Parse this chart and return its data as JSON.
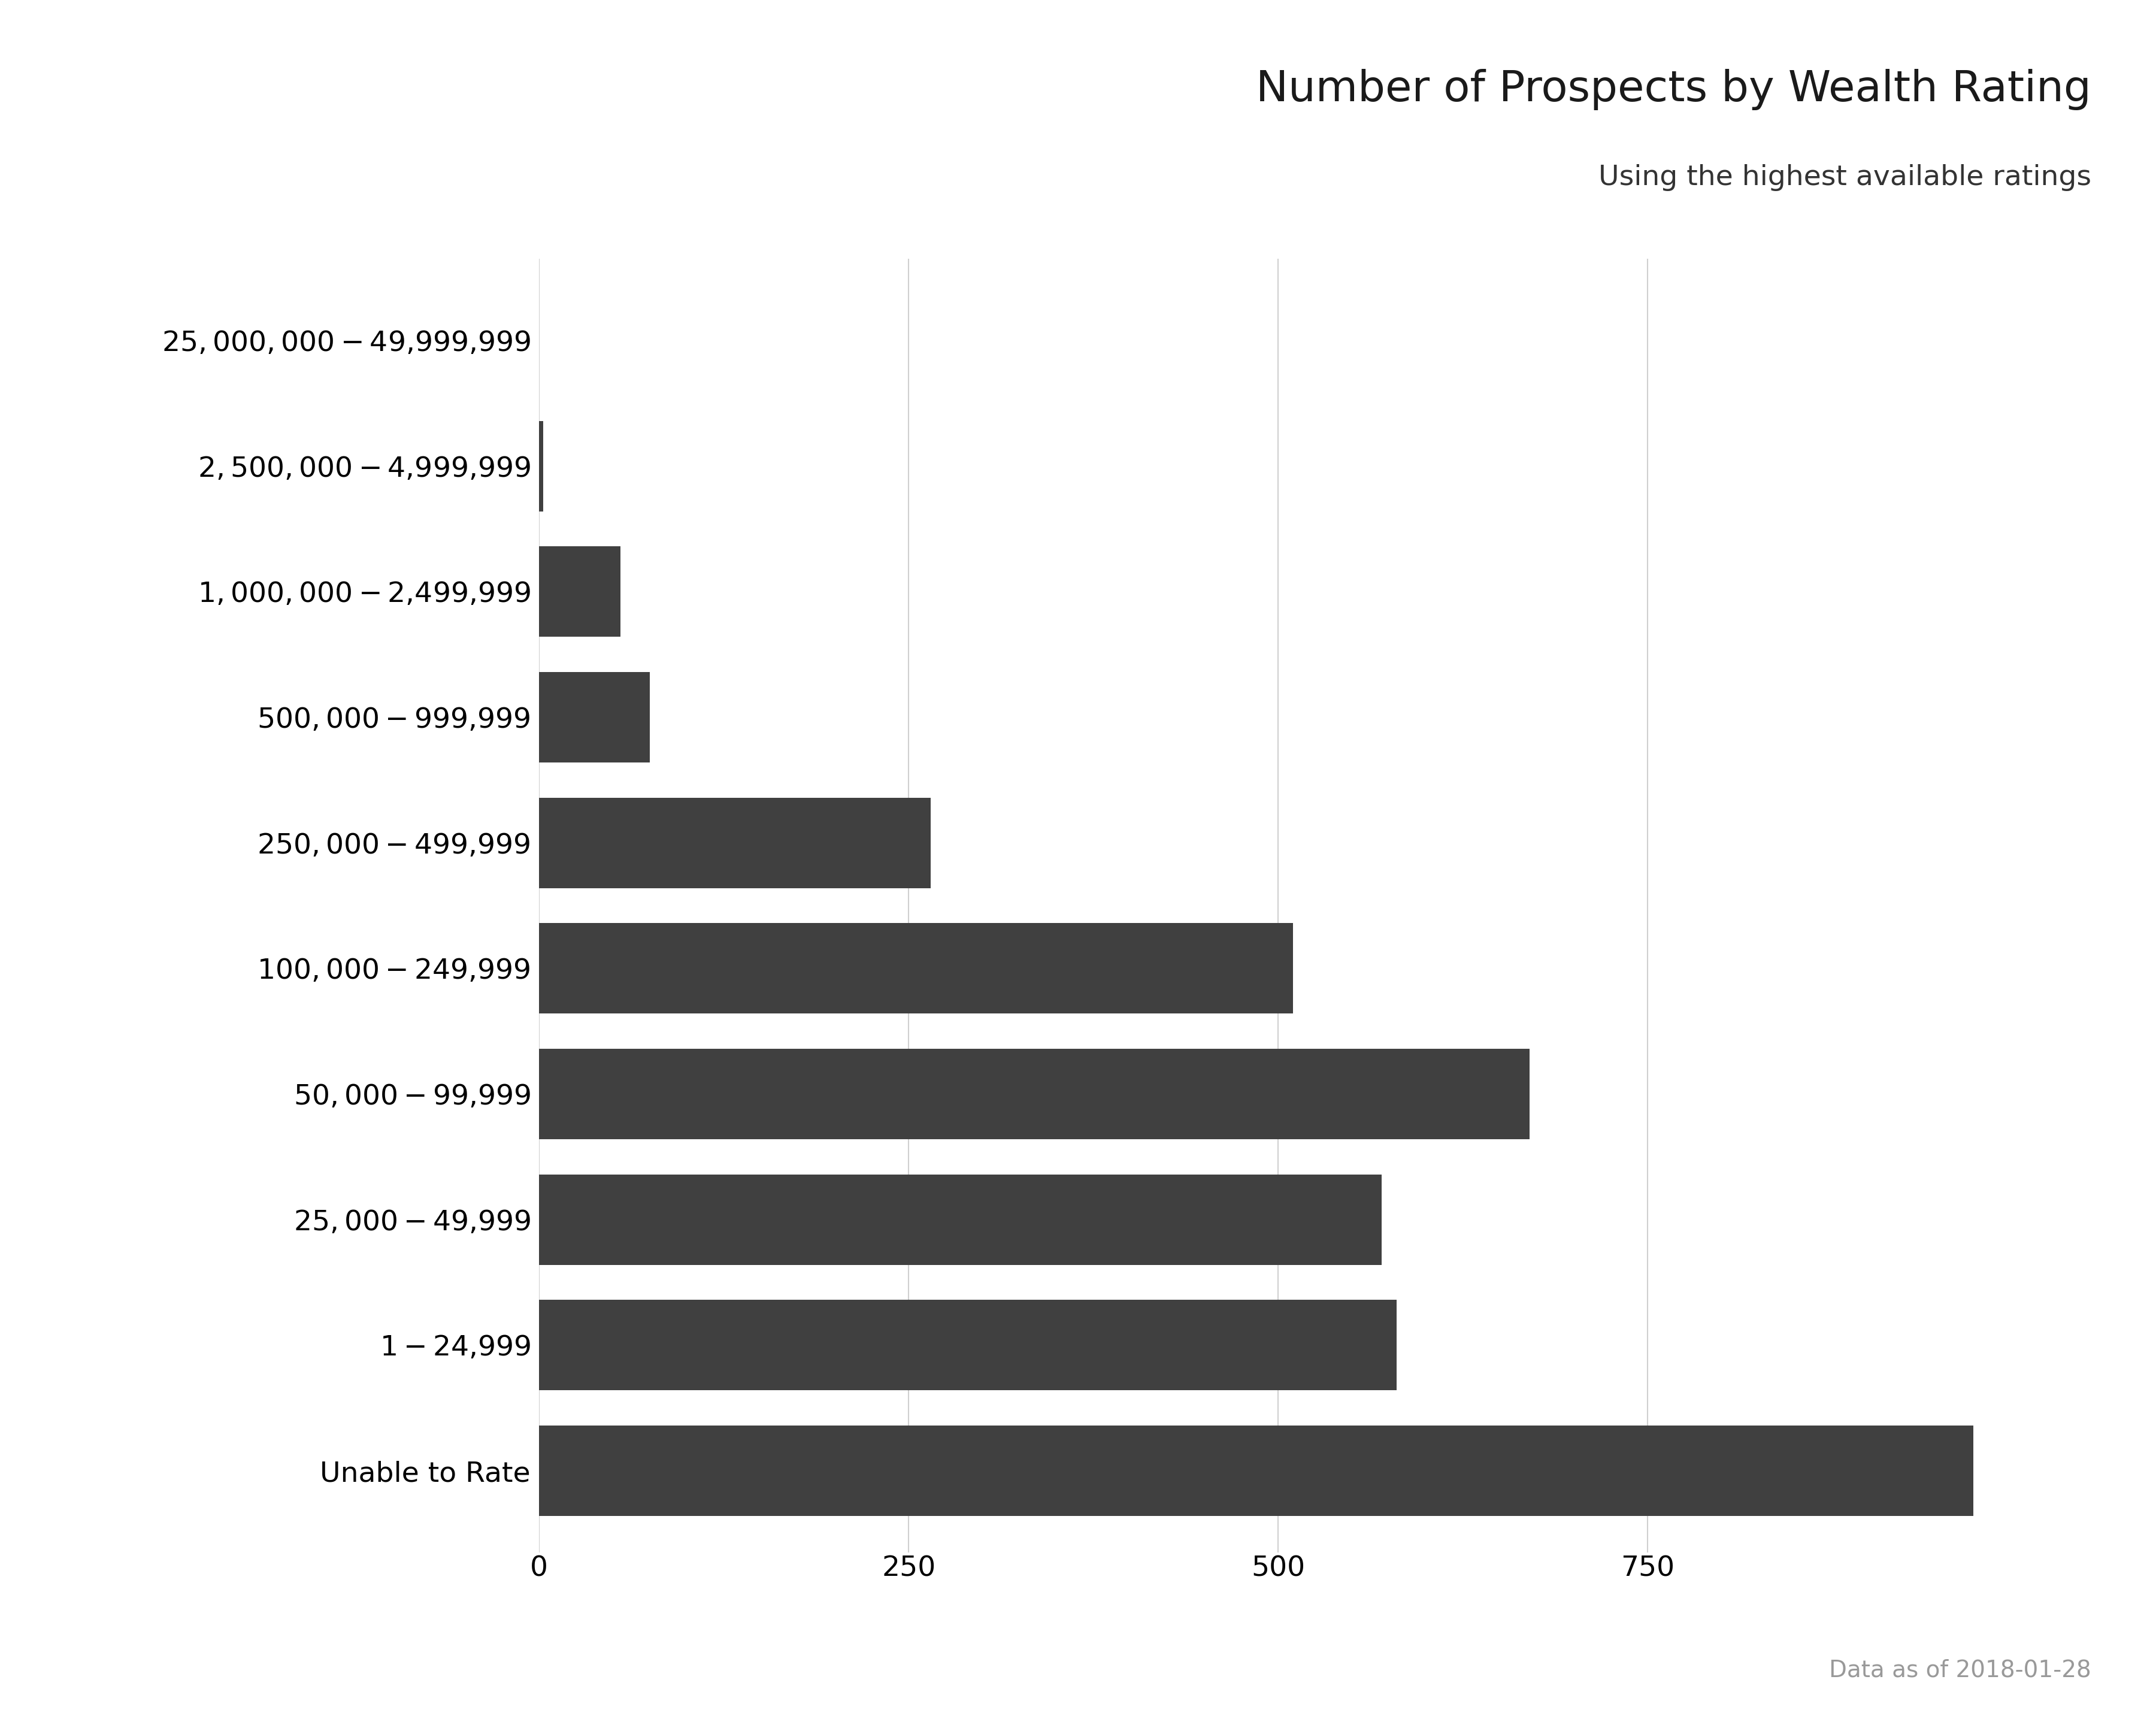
{
  "title": "Number of Prospects by Wealth Rating",
  "subtitle": "Using the highest available ratings",
  "footnote": "Data as of 2018-01-28",
  "categories": [
    "Unable to Rate",
    "$1-$24,999",
    "$25,000-$49,999",
    "$50,000-$99,999",
    "$100,000-$249,999",
    "$250,000-$499,999",
    "$500,000-$999,999",
    "$1,000,000-$2,499,999",
    "$2,500,000-$4,999,999",
    "$25,000,000-$49,999,999"
  ],
  "values": [
    970,
    580,
    570,
    670,
    510,
    265,
    75,
    55,
    3,
    0
  ],
  "bar_color": "#404040",
  "background_color": "#ffffff",
  "grid_color": "#d0d0d0",
  "xlim": [
    0,
    1050
  ],
  "xticks": [
    0,
    250,
    500,
    750
  ],
  "title_fontsize": 52,
  "subtitle_fontsize": 34,
  "footnote_fontsize": 28,
  "tick_fontsize": 34,
  "ylabel_fontsize": 34,
  "bar_height": 0.72
}
